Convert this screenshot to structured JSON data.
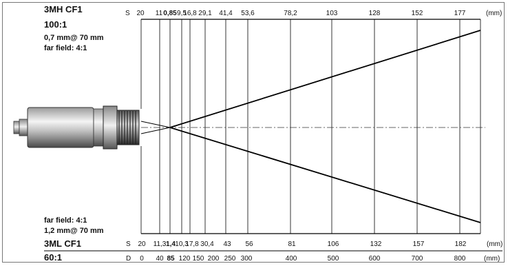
{
  "top_block": {
    "model": "3MH CF1",
    "ratio": "100:1",
    "spot": "0,7 mm@ 70 mm",
    "far_field": "far field: 4:1"
  },
  "bottom_block": {
    "far_field": "far field: 4:1",
    "spot": "1,2 mm@ 70 mm",
    "model": "3ML CF1",
    "ratio": "60:1"
  },
  "top_scale": {
    "prefix": "S",
    "unit": "(mm)",
    "values": [
      "20",
      "11",
      "0,85",
      "9,5",
      "16,8",
      "29,1",
      "41,4",
      "53,6",
      "78,2",
      "103",
      "128",
      "152",
      "177"
    ],
    "bold_value": "0,85"
  },
  "bottom_s_scale": {
    "prefix": "S",
    "unit": "(mm)",
    "values": [
      "20",
      "11,3",
      "1,4",
      "10,3",
      "17,8",
      "30,4",
      "43",
      "56",
      "81",
      "106",
      "132",
      "157",
      "182"
    ],
    "bold_value": "1,4"
  },
  "distance_scale": {
    "prefix": "D",
    "unit": "(mm)",
    "values": [
      "0",
      "40",
      "85",
      "120",
      "150",
      "200",
      "250",
      "300",
      "400",
      "500",
      "600",
      "700",
      "800"
    ],
    "bold_value": "85"
  }
}
